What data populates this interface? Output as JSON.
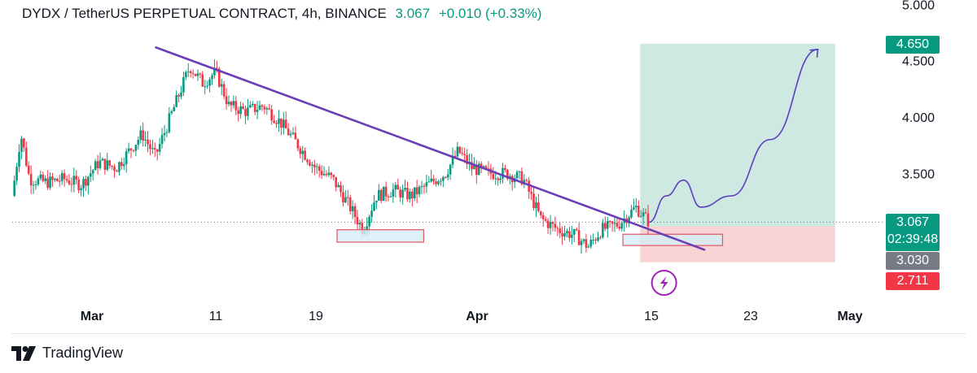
{
  "header": {
    "symbol": "DYDX / TetherUS PERPETUAL CONTRACT, 4h, BINANCE",
    "last_price": "3.067",
    "change": "+0.010 (+0.33%)"
  },
  "price_axis": {
    "ticks": [
      "5.000",
      "4.500",
      "4.000",
      "3.500"
    ],
    "tick_values": [
      5.0,
      4.5,
      4.0,
      3.5
    ]
  },
  "price_tags": {
    "target": "4.650",
    "current": "3.067",
    "countdown": "02:39:48",
    "entry": "3.030",
    "stop": "2.711"
  },
  "time_axis": {
    "labels": [
      "Mar",
      "11",
      "19",
      "Apr",
      "15",
      "23",
      "May"
    ],
    "bold": [
      true,
      false,
      false,
      true,
      false,
      false,
      true
    ]
  },
  "colors": {
    "up": "#089981",
    "down": "#f23645",
    "trendline": "#6a3fb5",
    "profit_zone": "#cde9e2",
    "loss_zone": "#f9d4d6",
    "projection": "#5b3fc0"
  },
  "footer": {
    "brand": "TradingView",
    "logo_icon": "tradingview-logo-icon"
  },
  "markers": {
    "lightning_icon": "lightning-icon"
  },
  "chart_data": {
    "type": "candlestick",
    "title": "DYDX / TetherUS PERPETUAL CONTRACT, 4h, BINANCE",
    "xlabel": "",
    "ylabel": "",
    "ylim": [
      2.4,
      5.0
    ],
    "close_path": [
      {
        "t": 0,
        "p": 3.3
      },
      {
        "t": 2,
        "p": 3.85
      },
      {
        "t": 4,
        "p": 3.45
      },
      {
        "t": 8,
        "p": 3.42
      },
      {
        "t": 12,
        "p": 3.45
      },
      {
        "t": 16,
        "p": 3.4
      },
      {
        "t": 20,
        "p": 3.6
      },
      {
        "t": 24,
        "p": 3.55
      },
      {
        "t": 27,
        "p": 3.7
      },
      {
        "t": 30,
        "p": 3.85
      },
      {
        "t": 33,
        "p": 3.65
      },
      {
        "t": 36,
        "p": 3.95
      },
      {
        "t": 39,
        "p": 4.25
      },
      {
        "t": 41,
        "p": 4.45
      },
      {
        "t": 44,
        "p": 4.3
      },
      {
        "t": 47,
        "p": 4.4
      },
      {
        "t": 50,
        "p": 4.1
      },
      {
        "t": 54,
        "p": 4.05
      },
      {
        "t": 58,
        "p": 4.1
      },
      {
        "t": 62,
        "p": 3.95
      },
      {
        "t": 66,
        "p": 3.75
      },
      {
        "t": 70,
        "p": 3.55
      },
      {
        "t": 74,
        "p": 3.45
      },
      {
        "t": 78,
        "p": 3.2
      },
      {
        "t": 81,
        "p": 3.0
      },
      {
        "t": 84,
        "p": 3.3
      },
      {
        "t": 88,
        "p": 3.35
      },
      {
        "t": 92,
        "p": 3.3
      },
      {
        "t": 96,
        "p": 3.4
      },
      {
        "t": 100,
        "p": 3.5
      },
      {
        "t": 103,
        "p": 3.7
      },
      {
        "t": 106,
        "p": 3.55
      },
      {
        "t": 110,
        "p": 3.5
      },
      {
        "t": 114,
        "p": 3.5
      },
      {
        "t": 118,
        "p": 3.45
      },
      {
        "t": 122,
        "p": 3.1
      },
      {
        "t": 126,
        "p": 3.0
      },
      {
        "t": 130,
        "p": 2.95
      },
      {
        "t": 133,
        "p": 2.85
      },
      {
        "t": 136,
        "p": 3.0
      },
      {
        "t": 140,
        "p": 3.05
      },
      {
        "t": 144,
        "p": 3.2
      },
      {
        "t": 147,
        "p": 3.067
      }
    ],
    "trendline": [
      {
        "t": 33,
        "p": 4.62
      },
      {
        "t": 160,
        "p": 2.82
      }
    ],
    "support_zones": [
      {
        "t0": 75,
        "t1": 95,
        "p0": 3.0,
        "p1": 2.89
      },
      {
        "t0": 141,
        "t1": 164,
        "p0": 2.96,
        "p1": 2.86
      }
    ],
    "position": {
      "entry": 3.03,
      "target": 4.65,
      "stop": 2.711,
      "t0": 145,
      "t1": 190
    },
    "projection_path": [
      {
        "t": 147,
        "p": 3.067
      },
      {
        "t": 151,
        "p": 3.3
      },
      {
        "t": 155,
        "p": 3.44
      },
      {
        "t": 159,
        "p": 3.2
      },
      {
        "t": 166,
        "p": 3.3
      },
      {
        "t": 175,
        "p": 3.8
      },
      {
        "t": 186,
        "p": 4.6
      }
    ]
  }
}
